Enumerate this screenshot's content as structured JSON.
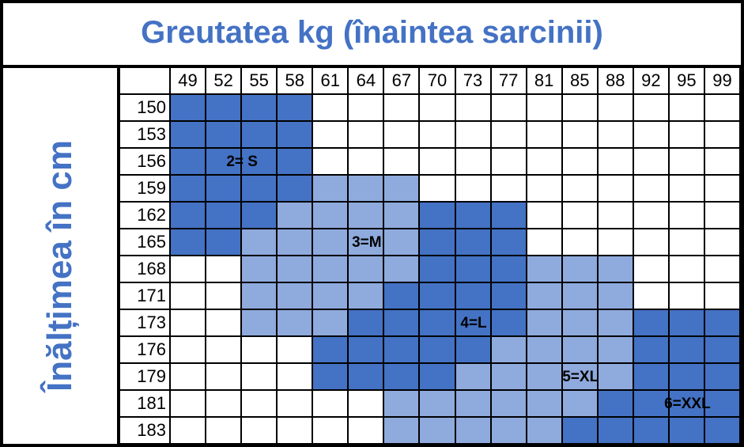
{
  "title": "Greutatea kg (înaintea sarcinii)",
  "side_label": "Înălțimea în cm",
  "weights": [
    "49",
    "52",
    "55",
    "58",
    "61",
    "64",
    "67",
    "70",
    "73",
    "77",
    "81",
    "85",
    "88",
    "92",
    "95",
    "99"
  ],
  "heights": [
    "150",
    "153",
    "156",
    "159",
    "162",
    "165",
    "168",
    "171",
    "173",
    "176",
    "179",
    "181",
    "183"
  ],
  "sizes": [
    {
      "code": "S",
      "label": "2= S",
      "color": "#4472c4"
    },
    {
      "code": "M",
      "label": "3=M",
      "color": "#8faadc"
    },
    {
      "code": "L",
      "label": "4=L",
      "color": "#4472c4"
    },
    {
      "code": "XL",
      "label": "5=XL",
      "color": "#8faadc"
    },
    {
      "code": "XXL",
      "label": "6=XXL",
      "color": "#4472c4"
    }
  ],
  "grid": [
    [
      "S",
      "S",
      "S",
      "S",
      "",
      "",
      "",
      "",
      "",
      "",
      "",
      "",
      "",
      "",
      "",
      ""
    ],
    [
      "S",
      "S",
      "S",
      "S",
      "",
      "",
      "",
      "",
      "",
      "",
      "",
      "",
      "",
      "",
      "",
      ""
    ],
    [
      "S",
      "S",
      "S",
      "S",
      "",
      "",
      "",
      "",
      "",
      "",
      "",
      "",
      "",
      "",
      "",
      ""
    ],
    [
      "S",
      "S",
      "S",
      "S",
      "M",
      "M",
      "M",
      "",
      "",
      "",
      "",
      "",
      "",
      "",
      "",
      ""
    ],
    [
      "S",
      "S",
      "S",
      "M",
      "M",
      "M",
      "M",
      "L",
      "L",
      "L",
      "",
      "",
      "",
      "",
      "",
      ""
    ],
    [
      "S",
      "S",
      "M",
      "M",
      "M",
      "M",
      "M",
      "L",
      "L",
      "L",
      "",
      "",
      "",
      "",
      "",
      ""
    ],
    [
      "",
      "",
      "M",
      "M",
      "M",
      "M",
      "M",
      "L",
      "L",
      "L",
      "XL",
      "XL",
      "XL",
      "",
      "",
      ""
    ],
    [
      "",
      "",
      "M",
      "M",
      "M",
      "M",
      "L",
      "L",
      "L",
      "L",
      "XL",
      "XL",
      "XL",
      "",
      "",
      ""
    ],
    [
      "",
      "",
      "M",
      "M",
      "M",
      "L",
      "L",
      "L",
      "L",
      "L",
      "XL",
      "XL",
      "XL",
      "XXL",
      "XXL",
      "XXL"
    ],
    [
      "",
      "",
      "",
      "",
      "L",
      "L",
      "L",
      "L",
      "L",
      "XL",
      "XL",
      "XL",
      "XL",
      "XXL",
      "XXL",
      "XXL"
    ],
    [
      "",
      "",
      "",
      "",
      "L",
      "L",
      "L",
      "L",
      "XL",
      "XL",
      "XL",
      "XL",
      "XL",
      "XXL",
      "XXL",
      "XXL"
    ],
    [
      "",
      "",
      "",
      "",
      "",
      "",
      "XL",
      "XL",
      "XL",
      "XL",
      "XL",
      "XL",
      "XXL",
      "XXL",
      "XXL",
      "XXL"
    ],
    [
      "",
      "",
      "",
      "",
      "",
      "",
      "XL",
      "XL",
      "XL",
      "XL",
      "XL",
      "XXL",
      "XXL",
      "XXL",
      "XXL",
      "XXL"
    ]
  ]
}
